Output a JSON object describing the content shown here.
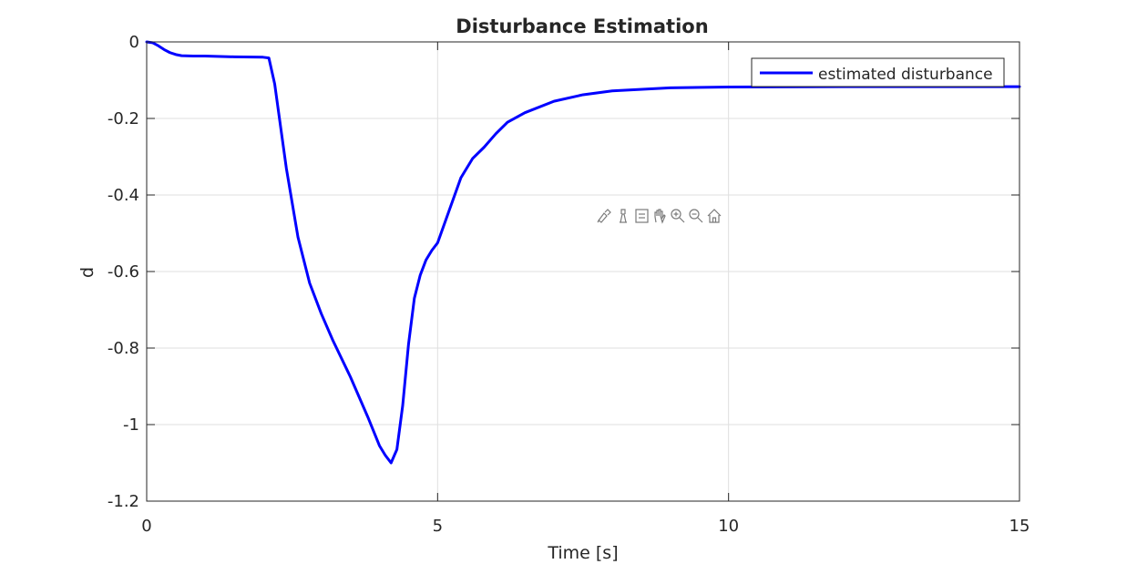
{
  "chart_data": {
    "type": "line",
    "title": "Disturbance Estimation",
    "xlabel": "Time [s]",
    "ylabel": "d",
    "xlim": [
      0,
      15
    ],
    "ylim": [
      -1.2,
      0
    ],
    "xticks": [
      0,
      5,
      10,
      15
    ],
    "xtick_labels": [
      "0",
      "5",
      "10",
      "15"
    ],
    "yticks": [
      0,
      -0.2,
      -0.4,
      -0.6,
      -0.8,
      -1,
      -1.2
    ],
    "ytick_labels": [
      "0",
      "-0.2",
      "-0.4",
      "-0.6",
      "-0.8",
      "-1",
      "-1.2"
    ],
    "grid": true,
    "legend_position": "top-right",
    "series": [
      {
        "name": "estimated disturbance",
        "color": "#0000ff",
        "x": [
          0,
          0.1,
          0.2,
          0.3,
          0.4,
          0.5,
          0.6,
          0.8,
          1.0,
          1.5,
          2.0,
          2.1,
          2.2,
          2.3,
          2.4,
          2.6,
          2.8,
          3.0,
          3.2,
          3.5,
          3.8,
          4.0,
          4.1,
          4.2,
          4.3,
          4.4,
          4.5,
          4.6,
          4.7,
          4.8,
          4.9,
          5.0,
          5.2,
          5.4,
          5.6,
          5.8,
          6.0,
          6.2,
          6.5,
          7.0,
          7.5,
          8.0,
          9.0,
          10.0,
          12.0,
          15.0
        ],
        "y": [
          0,
          -0.002,
          -0.01,
          -0.02,
          -0.028,
          -0.033,
          -0.036,
          -0.037,
          -0.037,
          -0.039,
          -0.04,
          -0.042,
          -0.11,
          -0.22,
          -0.33,
          -0.51,
          -0.63,
          -0.71,
          -0.78,
          -0.875,
          -0.98,
          -1.055,
          -1.08,
          -1.1,
          -1.065,
          -0.95,
          -0.79,
          -0.67,
          -0.61,
          -0.57,
          -0.545,
          -0.525,
          -0.44,
          -0.355,
          -0.305,
          -0.275,
          -0.24,
          -0.21,
          -0.185,
          -0.155,
          -0.138,
          -0.128,
          -0.12,
          -0.118,
          -0.117,
          -0.117
        ]
      }
    ]
  },
  "toolbar": {
    "icons": [
      "brush-icon",
      "data-tips-icon",
      "legend-toggle-icon",
      "pan-icon",
      "zoom-in-icon",
      "zoom-out-icon",
      "home-icon"
    ]
  }
}
